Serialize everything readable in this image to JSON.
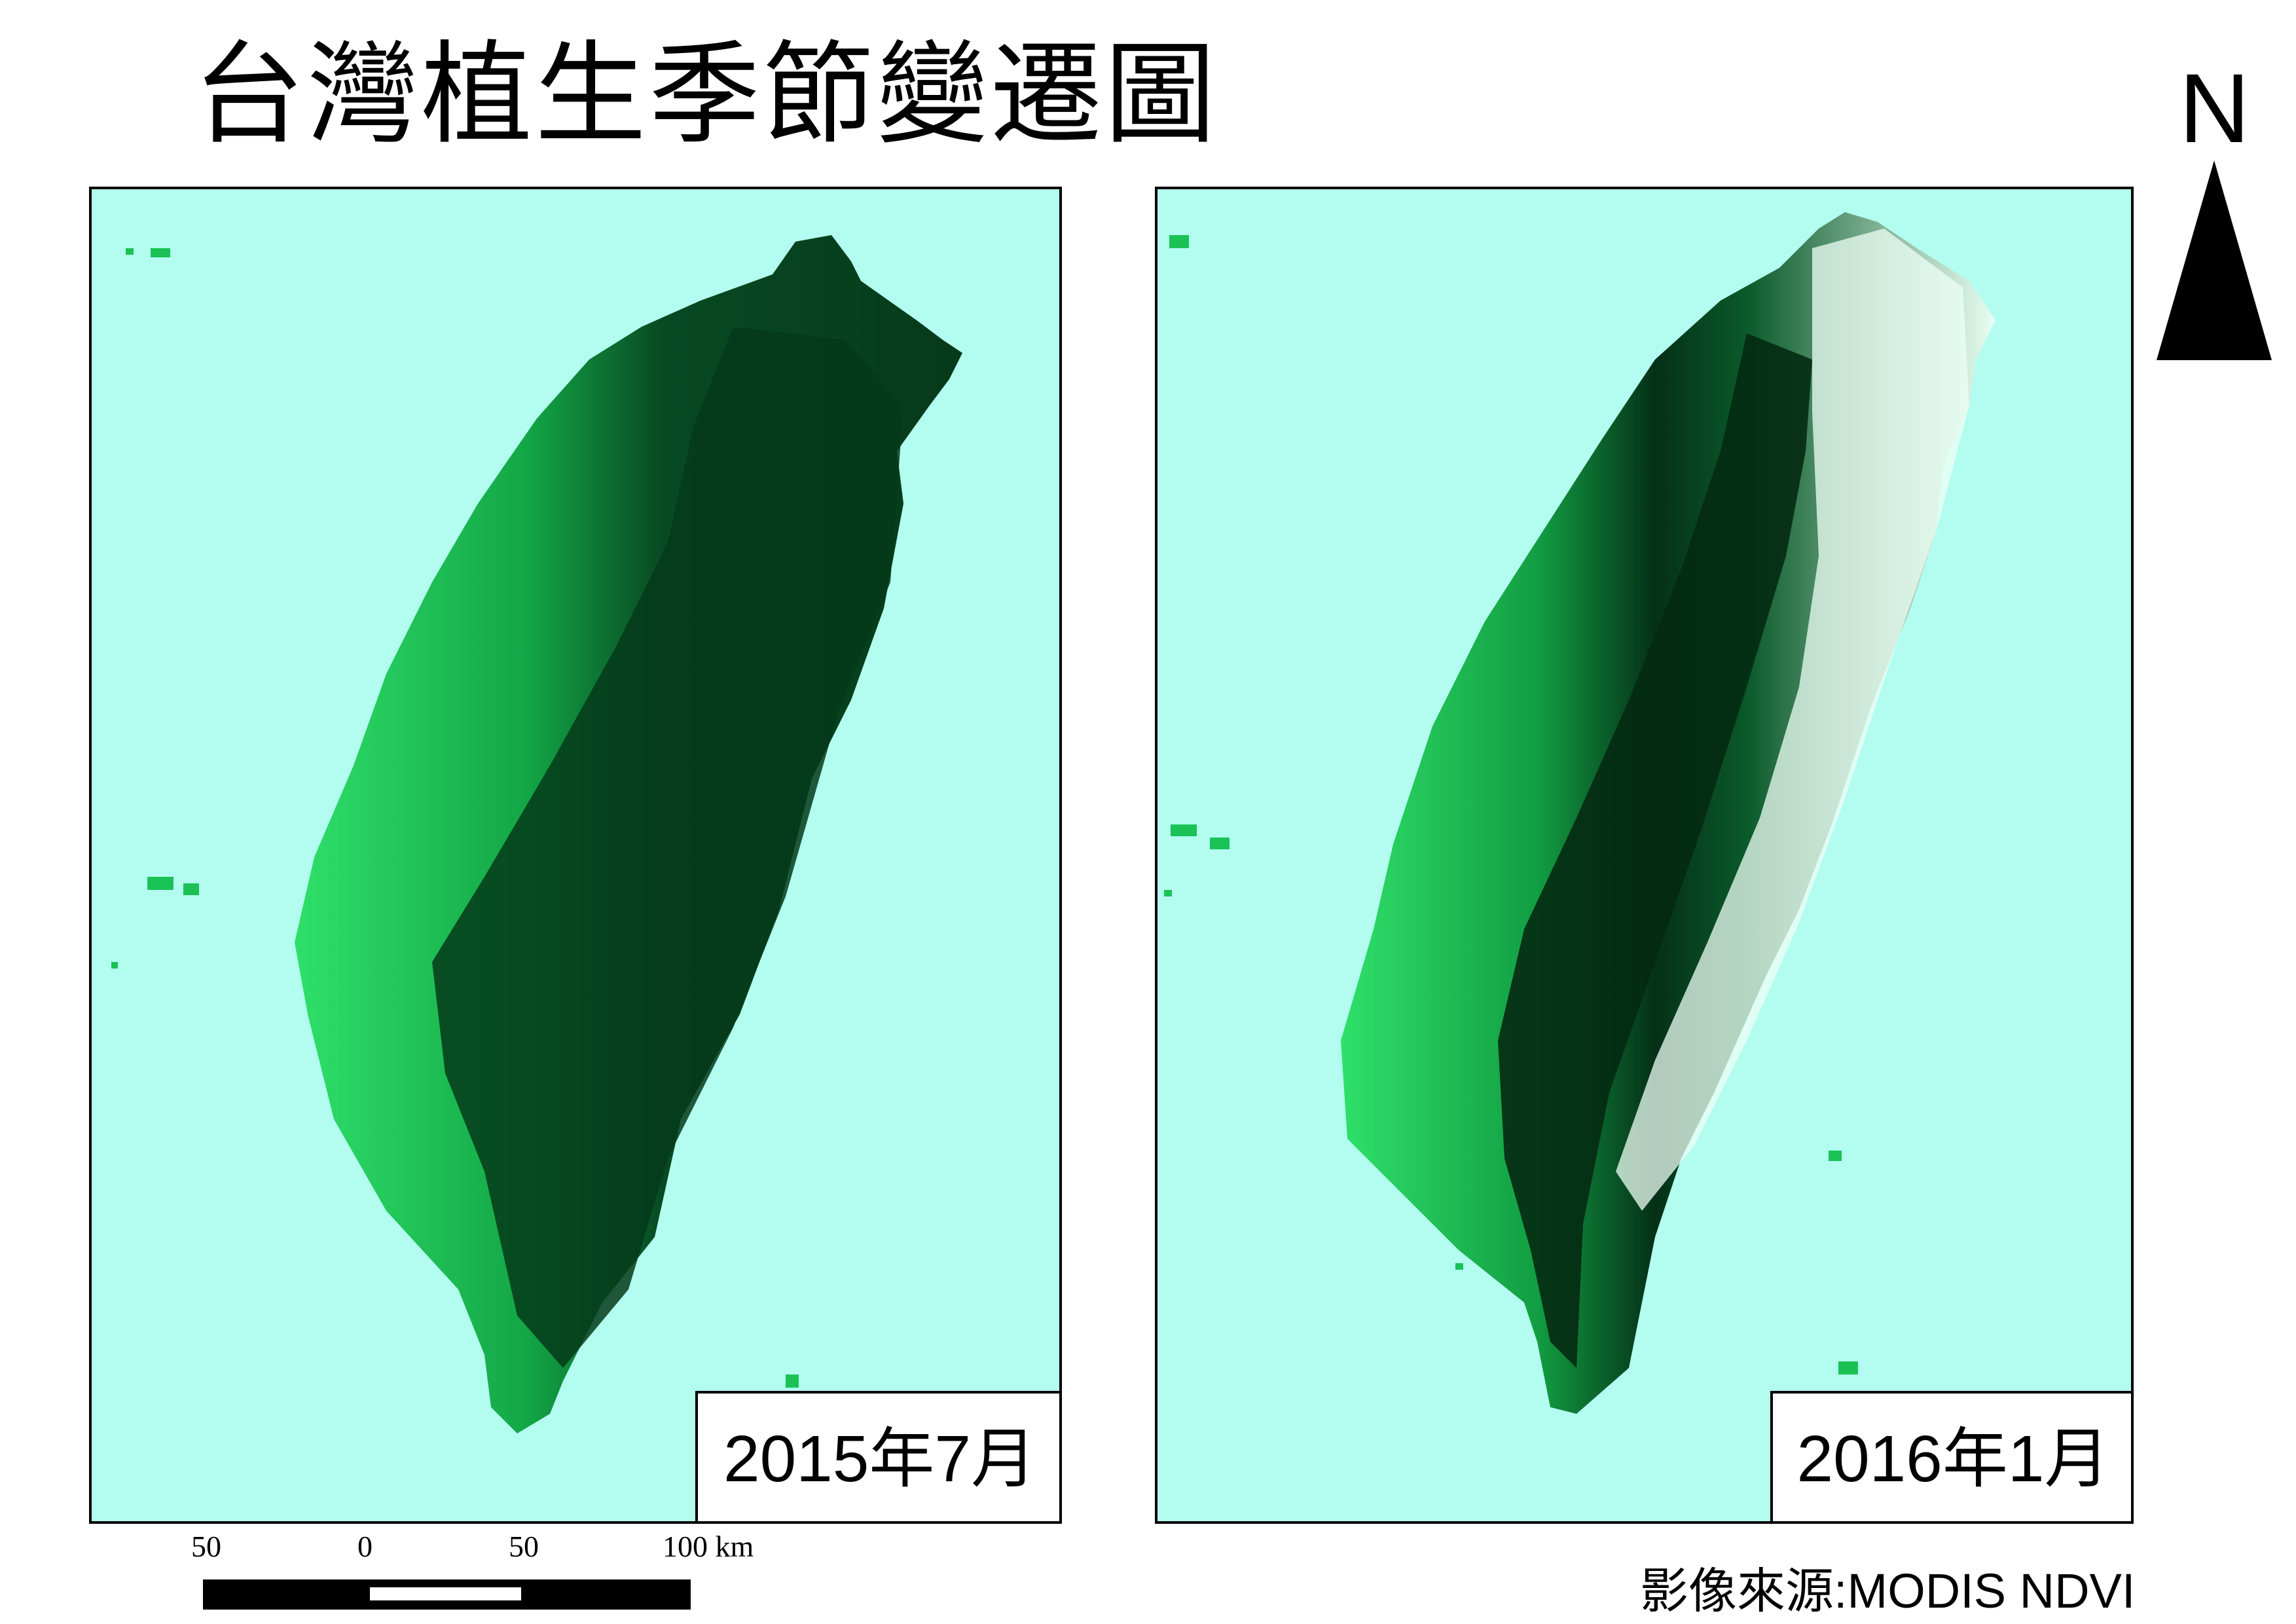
{
  "title": "台灣植生季節變遷圖",
  "panels": [
    {
      "date": "2015年7月"
    },
    {
      "date": "2016年1月"
    }
  ],
  "north_arrow": {
    "letter": "N"
  },
  "scale_bar": {
    "ticks": [
      "50",
      "0",
      "50",
      "100 km"
    ]
  },
  "source": "影像來源:MODIS NDVI",
  "colors": {
    "water": "#b3fdf0",
    "vegetation_low": "#3fe07a",
    "vegetation_high": "#04391b",
    "cloud": "#eafff4"
  }
}
